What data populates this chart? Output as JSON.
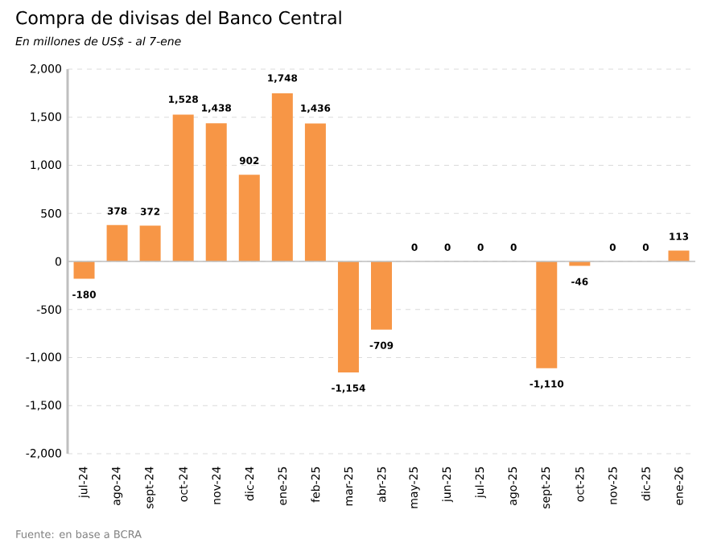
{
  "chart_data": {
    "type": "bar",
    "title": "Compra de divisas del Banco Central",
    "subtitle": "En millones de US$ - al 7-ene",
    "categories": [
      "jul-24",
      "ago-24",
      "sept-24",
      "oct-24",
      "nov-24",
      "dic-24",
      "ene-25",
      "feb-25",
      "mar-25",
      "abr-25",
      "may-25",
      "jun-25",
      "jul-25",
      "ago-25",
      "sept-25",
      "oct-25",
      "nov-25",
      "dic-25",
      "ene-26"
    ],
    "values": [
      -180,
      378,
      372,
      1528,
      1438,
      902,
      1748,
      1436,
      -1154,
      -709,
      0,
      0,
      0,
      0,
      -1110,
      -46,
      0,
      0,
      113
    ],
    "value_labels": [
      "-180",
      "378",
      "372",
      "1,528",
      "1,438",
      "902",
      "1,748",
      "1,436",
      "-1,154",
      "-709",
      "0",
      "0",
      "0",
      "0",
      "-1,110",
      "-46",
      "0",
      "0",
      "113"
    ],
    "color": "#f79646",
    "ylim": [
      -2000,
      2000
    ],
    "yticks": [
      {
        "value": -2000,
        "label": "-2,000"
      },
      {
        "value": -1500,
        "label": "-1,500"
      },
      {
        "value": -1000,
        "label": "-1,000"
      },
      {
        "value": -500,
        "label": "-500"
      },
      0,
      500,
      {
        "value": 1000,
        "label": "1,000"
      },
      {
        "value": 1500,
        "label": "1,500"
      },
      {
        "value": 2000,
        "label": "2,000"
      }
    ],
    "grid": "y",
    "annotations": [
      "Fuente: en base a BCRA"
    ]
  }
}
